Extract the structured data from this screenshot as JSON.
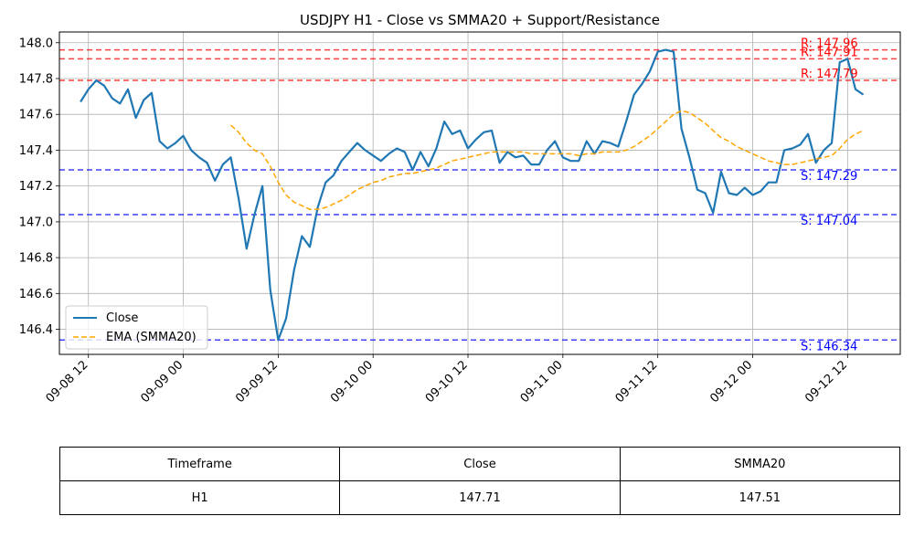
{
  "chart_data": {
    "type": "line",
    "title": "USDJPY H1 - Close vs SMMA20 + Support/Resistance",
    "xlabel": "",
    "ylabel": "",
    "ylim": [
      146.26,
      148.06
    ],
    "xlim": [
      "2025-09-08 08:20",
      "2025-09-12 18:40"
    ],
    "grid": true,
    "legend_position": "lower-left",
    "x_ticks": [
      "09-08 12",
      "09-09 00",
      "09-09 12",
      "09-10 00",
      "09-10 12",
      "09-11 00",
      "09-11 12",
      "09-12 00",
      "09-12 12"
    ],
    "x_tick_times": [
      "2025-09-08 12:00",
      "2025-09-09 00:00",
      "2025-09-09 12:00",
      "2025-09-10 00:00",
      "2025-09-10 12:00",
      "2025-09-11 00:00",
      "2025-09-11 12:00",
      "2025-09-12 00:00",
      "2025-09-12 12:00"
    ],
    "y_ticks": [
      "146.4",
      "146.6",
      "146.8",
      "147.0",
      "147.2",
      "147.4",
      "147.6",
      "147.8",
      "148.0"
    ],
    "y_tick_values": [
      146.4,
      146.6,
      146.8,
      147.0,
      147.2,
      147.4,
      147.6,
      147.8,
      148.0
    ],
    "series": [
      {
        "name": "Close",
        "color": "#1f77b4",
        "style": "solid",
        "points": [
          [
            "2025-09-08 11:00",
            147.67
          ],
          [
            "2025-09-08 12:00",
            147.74
          ],
          [
            "2025-09-08 13:00",
            147.79
          ],
          [
            "2025-09-08 14:00",
            147.76
          ],
          [
            "2025-09-08 15:00",
            147.69
          ],
          [
            "2025-09-08 16:00",
            147.66
          ],
          [
            "2025-09-08 17:00",
            147.74
          ],
          [
            "2025-09-08 18:00",
            147.58
          ],
          [
            "2025-09-08 19:00",
            147.68
          ],
          [
            "2025-09-08 20:00",
            147.72
          ],
          [
            "2025-09-08 21:00",
            147.45
          ],
          [
            "2025-09-08 22:00",
            147.41
          ],
          [
            "2025-09-08 23:00",
            147.44
          ],
          [
            "2025-09-09 00:00",
            147.48
          ],
          [
            "2025-09-09 01:00",
            147.4
          ],
          [
            "2025-09-09 02:00",
            147.36
          ],
          [
            "2025-09-09 03:00",
            147.33
          ],
          [
            "2025-09-09 04:00",
            147.23
          ],
          [
            "2025-09-09 05:00",
            147.32
          ],
          [
            "2025-09-09 06:00",
            147.36
          ],
          [
            "2025-09-09 07:00",
            147.13
          ],
          [
            "2025-09-09 08:00",
            146.85
          ],
          [
            "2025-09-09 09:00",
            147.04
          ],
          [
            "2025-09-09 10:00",
            147.2
          ],
          [
            "2025-09-09 11:00",
            146.62
          ],
          [
            "2025-09-09 12:00",
            146.34
          ],
          [
            "2025-09-09 13:00",
            146.46
          ],
          [
            "2025-09-09 14:00",
            146.73
          ],
          [
            "2025-09-09 15:00",
            146.92
          ],
          [
            "2025-09-09 16:00",
            146.86
          ],
          [
            "2025-09-09 17:00",
            147.08
          ],
          [
            "2025-09-09 18:00",
            147.22
          ],
          [
            "2025-09-09 19:00",
            147.26
          ],
          [
            "2025-09-09 20:00",
            147.34
          ],
          [
            "2025-09-09 21:00",
            147.39
          ],
          [
            "2025-09-09 22:00",
            147.44
          ],
          [
            "2025-09-09 23:00",
            147.4
          ],
          [
            "2025-09-10 00:00",
            147.37
          ],
          [
            "2025-09-10 01:00",
            147.34
          ],
          [
            "2025-09-10 02:00",
            147.38
          ],
          [
            "2025-09-10 03:00",
            147.41
          ],
          [
            "2025-09-10 04:00",
            147.39
          ],
          [
            "2025-09-10 05:00",
            147.29
          ],
          [
            "2025-09-10 06:00",
            147.39
          ],
          [
            "2025-09-10 07:00",
            147.31
          ],
          [
            "2025-09-10 08:00",
            147.41
          ],
          [
            "2025-09-10 09:00",
            147.56
          ],
          [
            "2025-09-10 10:00",
            147.49
          ],
          [
            "2025-09-10 11:00",
            147.51
          ],
          [
            "2025-09-10 12:00",
            147.41
          ],
          [
            "2025-09-10 13:00",
            147.46
          ],
          [
            "2025-09-10 14:00",
            147.5
          ],
          [
            "2025-09-10 15:00",
            147.51
          ],
          [
            "2025-09-10 16:00",
            147.33
          ],
          [
            "2025-09-10 17:00",
            147.39
          ],
          [
            "2025-09-10 18:00",
            147.36
          ],
          [
            "2025-09-10 19:00",
            147.37
          ],
          [
            "2025-09-10 20:00",
            147.32
          ],
          [
            "2025-09-10 21:00",
            147.32
          ],
          [
            "2025-09-10 22:00",
            147.4
          ],
          [
            "2025-09-10 23:00",
            147.45
          ],
          [
            "2025-09-11 00:00",
            147.36
          ],
          [
            "2025-09-11 01:00",
            147.34
          ],
          [
            "2025-09-11 02:00",
            147.34
          ],
          [
            "2025-09-11 03:00",
            147.45
          ],
          [
            "2025-09-11 04:00",
            147.38
          ],
          [
            "2025-09-11 05:00",
            147.45
          ],
          [
            "2025-09-11 06:00",
            147.44
          ],
          [
            "2025-09-11 07:00",
            147.42
          ],
          [
            "2025-09-11 08:00",
            147.56
          ],
          [
            "2025-09-11 09:00",
            147.71
          ],
          [
            "2025-09-11 10:00",
            147.77
          ],
          [
            "2025-09-11 11:00",
            147.84
          ],
          [
            "2025-09-11 12:00",
            147.95
          ],
          [
            "2025-09-11 13:00",
            147.96
          ],
          [
            "2025-09-11 14:00",
            147.95
          ],
          [
            "2025-09-11 15:00",
            147.52
          ],
          [
            "2025-09-11 16:00",
            147.36
          ],
          [
            "2025-09-11 17:00",
            147.18
          ],
          [
            "2025-09-11 18:00",
            147.16
          ],
          [
            "2025-09-11 19:00",
            147.05
          ],
          [
            "2025-09-11 20:00",
            147.28
          ],
          [
            "2025-09-11 21:00",
            147.16
          ],
          [
            "2025-09-11 22:00",
            147.15
          ],
          [
            "2025-09-11 23:00",
            147.19
          ],
          [
            "2025-09-12 00:00",
            147.15
          ],
          [
            "2025-09-12 01:00",
            147.17
          ],
          [
            "2025-09-12 02:00",
            147.22
          ],
          [
            "2025-09-12 03:00",
            147.22
          ],
          [
            "2025-09-12 04:00",
            147.4
          ],
          [
            "2025-09-12 05:00",
            147.41
          ],
          [
            "2025-09-12 06:00",
            147.43
          ],
          [
            "2025-09-12 07:00",
            147.49
          ],
          [
            "2025-09-12 08:00",
            147.33
          ],
          [
            "2025-09-12 09:00",
            147.4
          ],
          [
            "2025-09-12 10:00",
            147.44
          ],
          [
            "2025-09-12 11:00",
            147.89
          ],
          [
            "2025-09-12 12:00",
            147.91
          ],
          [
            "2025-09-12 13:00",
            147.74
          ],
          [
            "2025-09-12 14:00",
            147.71
          ]
        ]
      },
      {
        "name": "EMA (SMMA20)",
        "color": "#ffa500",
        "style": "dashed",
        "points": [
          [
            "2025-09-09 06:00",
            147.54
          ],
          [
            "2025-09-09 07:00",
            147.5
          ],
          [
            "2025-09-09 08:00",
            147.44
          ],
          [
            "2025-09-09 09:00",
            147.4
          ],
          [
            "2025-09-09 10:00",
            147.38
          ],
          [
            "2025-09-09 11:00",
            147.31
          ],
          [
            "2025-09-09 12:00",
            147.22
          ],
          [
            "2025-09-09 13:00",
            147.15
          ],
          [
            "2025-09-09 14:00",
            147.11
          ],
          [
            "2025-09-09 15:00",
            147.09
          ],
          [
            "2025-09-09 16:00",
            147.07
          ],
          [
            "2025-09-09 17:00",
            147.07
          ],
          [
            "2025-09-09 18:00",
            147.08
          ],
          [
            "2025-09-09 19:00",
            147.1
          ],
          [
            "2025-09-09 20:00",
            147.12
          ],
          [
            "2025-09-09 21:00",
            147.15
          ],
          [
            "2025-09-09 22:00",
            147.18
          ],
          [
            "2025-09-09 23:00",
            147.2
          ],
          [
            "2025-09-10 00:00",
            147.22
          ],
          [
            "2025-09-10 01:00",
            147.23
          ],
          [
            "2025-09-10 02:00",
            147.25
          ],
          [
            "2025-09-10 03:00",
            147.26
          ],
          [
            "2025-09-10 04:00",
            147.27
          ],
          [
            "2025-09-10 05:00",
            147.27
          ],
          [
            "2025-09-10 06:00",
            147.28
          ],
          [
            "2025-09-10 07:00",
            147.29
          ],
          [
            "2025-09-10 08:00",
            147.3
          ],
          [
            "2025-09-10 09:00",
            147.32
          ],
          [
            "2025-09-10 10:00",
            147.34
          ],
          [
            "2025-09-10 11:00",
            147.35
          ],
          [
            "2025-09-10 12:00",
            147.36
          ],
          [
            "2025-09-10 13:00",
            147.37
          ],
          [
            "2025-09-10 14:00",
            147.38
          ],
          [
            "2025-09-10 15:00",
            147.39
          ],
          [
            "2025-09-10 16:00",
            147.39
          ],
          [
            "2025-09-10 17:00",
            147.39
          ],
          [
            "2025-09-10 18:00",
            147.39
          ],
          [
            "2025-09-10 19:00",
            147.39
          ],
          [
            "2025-09-10 20:00",
            147.38
          ],
          [
            "2025-09-10 21:00",
            147.38
          ],
          [
            "2025-09-10 22:00",
            147.38
          ],
          [
            "2025-09-10 23:00",
            147.38
          ],
          [
            "2025-09-11 00:00",
            147.38
          ],
          [
            "2025-09-11 01:00",
            147.38
          ],
          [
            "2025-09-11 02:00",
            147.37
          ],
          [
            "2025-09-11 03:00",
            147.38
          ],
          [
            "2025-09-11 04:00",
            147.38
          ],
          [
            "2025-09-11 05:00",
            147.39
          ],
          [
            "2025-09-11 06:00",
            147.39
          ],
          [
            "2025-09-11 07:00",
            147.39
          ],
          [
            "2025-09-11 08:00",
            147.4
          ],
          [
            "2025-09-11 09:00",
            147.42
          ],
          [
            "2025-09-11 10:00",
            147.45
          ],
          [
            "2025-09-11 11:00",
            147.48
          ],
          [
            "2025-09-11 12:00",
            147.52
          ],
          [
            "2025-09-11 13:00",
            147.56
          ],
          [
            "2025-09-11 14:00",
            147.6
          ],
          [
            "2025-09-11 15:00",
            147.62
          ],
          [
            "2025-09-11 16:00",
            147.61
          ],
          [
            "2025-09-11 17:00",
            147.58
          ],
          [
            "2025-09-11 18:00",
            147.55
          ],
          [
            "2025-09-11 19:00",
            147.51
          ],
          [
            "2025-09-11 20:00",
            147.47
          ],
          [
            "2025-09-11 21:00",
            147.45
          ],
          [
            "2025-09-11 22:00",
            147.42
          ],
          [
            "2025-09-11 23:00",
            147.4
          ],
          [
            "2025-09-12 00:00",
            147.38
          ],
          [
            "2025-09-12 01:00",
            147.36
          ],
          [
            "2025-09-12 02:00",
            147.34
          ],
          [
            "2025-09-12 03:00",
            147.33
          ],
          [
            "2025-09-12 04:00",
            147.32
          ],
          [
            "2025-09-12 05:00",
            147.32
          ],
          [
            "2025-09-12 06:00",
            147.33
          ],
          [
            "2025-09-12 07:00",
            147.34
          ],
          [
            "2025-09-12 08:00",
            147.35
          ],
          [
            "2025-09-12 09:00",
            147.36
          ],
          [
            "2025-09-12 10:00",
            147.37
          ],
          [
            "2025-09-12 11:00",
            147.41
          ],
          [
            "2025-09-12 12:00",
            147.46
          ],
          [
            "2025-09-12 13:00",
            147.49
          ],
          [
            "2025-09-12 14:00",
            147.51
          ]
        ]
      }
    ],
    "hlines": [
      {
        "kind": "resistance",
        "value": 147.96,
        "label": "R: 147.96",
        "color": "#ff0000"
      },
      {
        "kind": "resistance",
        "value": 147.91,
        "label": "R: 147.91",
        "color": "#ff0000"
      },
      {
        "kind": "resistance",
        "value": 147.79,
        "label": "R: 147.79",
        "color": "#ff0000"
      },
      {
        "kind": "support",
        "value": 147.29,
        "label": "S: 147.29",
        "color": "#0000ff"
      },
      {
        "kind": "support",
        "value": 147.04,
        "label": "S: 147.04",
        "color": "#0000ff"
      },
      {
        "kind": "support",
        "value": 146.34,
        "label": "S: 146.34",
        "color": "#0000ff"
      }
    ]
  },
  "table": {
    "headers": [
      "Timeframe",
      "Close",
      "SMMA20"
    ],
    "rows": [
      [
        "H1",
        "147.71",
        "147.51"
      ]
    ]
  }
}
